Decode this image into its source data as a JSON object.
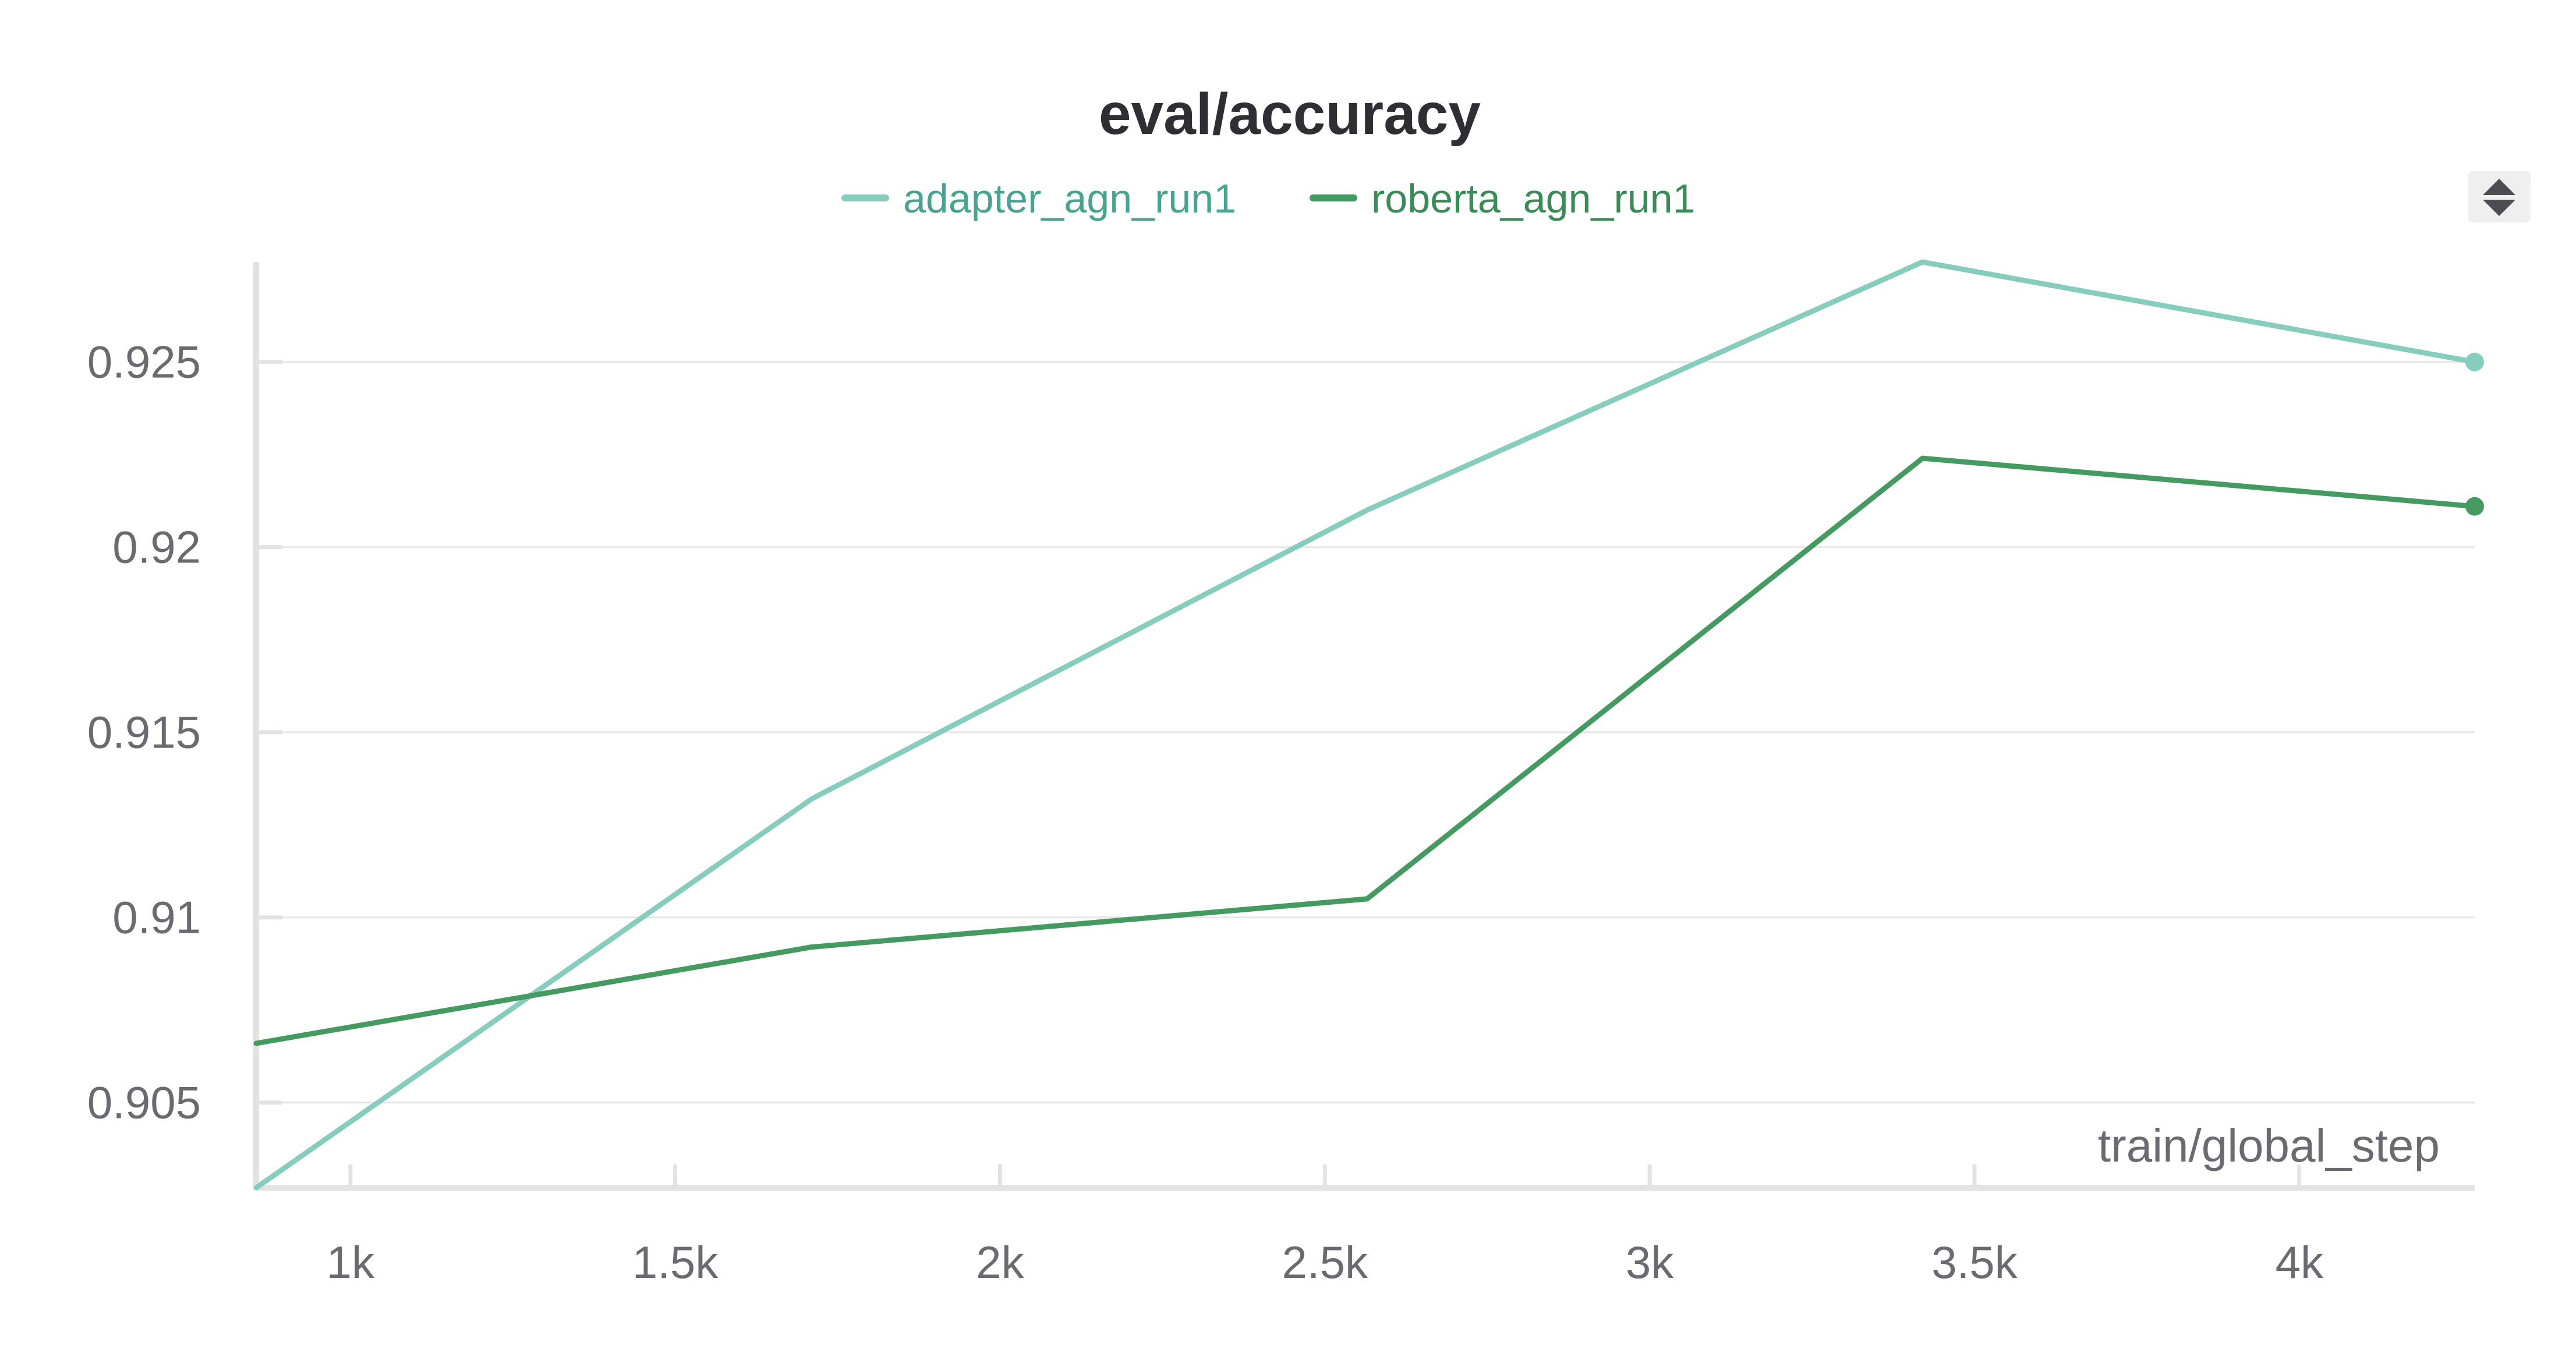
{
  "chart_data": {
    "type": "line",
    "title": "eval/accuracy",
    "xlabel": "train/global_step",
    "ylabel": "",
    "xlim": [
      855,
      4270
    ],
    "ylim": [
      0.9027,
      0.9277
    ],
    "x_ticks": [
      {
        "value": 1000,
        "label": "1k"
      },
      {
        "value": 1500,
        "label": "1.5k"
      },
      {
        "value": 2000,
        "label": "2k"
      },
      {
        "value": 2500,
        "label": "2.5k"
      },
      {
        "value": 3000,
        "label": "3k"
      },
      {
        "value": 3500,
        "label": "3.5k"
      },
      {
        "value": 4000,
        "label": "4k"
      }
    ],
    "y_ticks": [
      {
        "value": 0.905,
        "label": "0.905"
      },
      {
        "value": 0.91,
        "label": "0.91"
      },
      {
        "value": 0.915,
        "label": "0.915"
      },
      {
        "value": 0.92,
        "label": "0.92"
      },
      {
        "value": 0.925,
        "label": "0.925"
      }
    ],
    "grid": true,
    "legend_position": "top-center",
    "series": [
      {
        "name": "adapter_agn_run1",
        "color": "#86cdbd",
        "text_color": "#4aa290",
        "x": [
          855,
          1710,
          2565,
          3420,
          4270
        ],
        "y": [
          0.9027,
          0.9132,
          0.921,
          0.9277,
          0.925
        ]
      },
      {
        "name": "roberta_agn_run1",
        "color": "#459a62",
        "text_color": "#3b8a57",
        "x": [
          855,
          1710,
          2565,
          3420,
          4270
        ],
        "y": [
          0.9066,
          0.9092,
          0.9105,
          0.9224,
          0.9211
        ]
      }
    ]
  }
}
